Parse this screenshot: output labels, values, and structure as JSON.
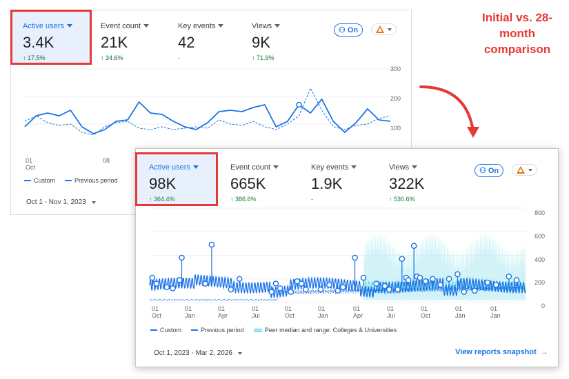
{
  "annotation": {
    "line1": "Initial vs. 28-",
    "line2": "month",
    "line3": "comparison",
    "color": "#e53935"
  },
  "card1": {
    "metrics": [
      {
        "label": "Active users",
        "value": "3.4K",
        "change": "↑ 17.5%"
      },
      {
        "label": "Event count",
        "value": "21K",
        "change": "↑ 34.6%"
      },
      {
        "label": "Key events",
        "value": "42",
        "change": "-"
      },
      {
        "label": "Views",
        "value": "9K",
        "change": "↑ 71.9%"
      }
    ],
    "insights_label": "On",
    "y_ticks": [
      "300",
      "200",
      "100"
    ],
    "x_ticks": [
      {
        "day": "01",
        "month": "Oct"
      },
      {
        "day": "08",
        "month": ""
      }
    ],
    "legend": {
      "custom": "Custom",
      "previous": "Previous period"
    },
    "date_range": "Oct 1 - Nov 1, 2023"
  },
  "card2": {
    "metrics": [
      {
        "label": "Active users",
        "value": "98K",
        "change": "↑ 364.4%"
      },
      {
        "label": "Event count",
        "value": "665K",
        "change": "↑ 386.6%"
      },
      {
        "label": "Key events",
        "value": "1.9K",
        "change": "-"
      },
      {
        "label": "Views",
        "value": "322K",
        "change": "↑ 530.6%"
      }
    ],
    "insights_label": "On",
    "y_ticks": [
      "800",
      "600",
      "400",
      "200",
      "0"
    ],
    "x_ticks": [
      {
        "day": "01",
        "month": "Oct"
      },
      {
        "day": "01",
        "month": "Jan"
      },
      {
        "day": "01",
        "month": "Apr"
      },
      {
        "day": "01",
        "month": "Jul"
      },
      {
        "day": "01",
        "month": "Oct"
      },
      {
        "day": "01",
        "month": "Jan"
      },
      {
        "day": "01",
        "month": "Apr"
      },
      {
        "day": "01",
        "month": "Jul"
      },
      {
        "day": "01",
        "month": "Oct"
      },
      {
        "day": "01",
        "month": "Jan"
      }
    ],
    "legend": {
      "custom": "Custom",
      "previous": "Previous period",
      "peer": "Peer median and range: Colleges & Universities"
    },
    "date_range": "Oct 1, 2023 - Mar 2, 2026",
    "snapshot_label": "View reports snapshot"
  },
  "chart_data": [
    {
      "type": "line",
      "ylim": [
        0,
        300
      ],
      "series": [
        {
          "name": "Custom",
          "values": [
            90,
            130,
            140,
            130,
            150,
            90,
            65,
            80,
            110,
            115,
            180,
            140,
            135,
            110,
            90,
            80,
            105,
            145,
            150,
            145,
            160,
            170,
            90,
            110,
            170,
            140,
            190,
            110,
            70,
            105,
            155,
            115,
            110
          ]
        },
        {
          "name": "Previous period",
          "values": [
            110,
            130,
            105,
            95,
            100,
            70,
            60,
            90,
            105,
            110,
            85,
            80,
            90,
            80,
            85,
            90,
            85,
            115,
            100,
            95,
            110,
            90,
            80,
            100,
            130,
            230,
            150,
            90,
            80,
            95,
            100,
            120,
            130
          ]
        }
      ]
    },
    {
      "type": "line",
      "ylim": [
        0,
        800
      ],
      "series": [
        {
          "name": "Custom",
          "values": []
        },
        {
          "name": "Previous period",
          "values": []
        }
      ]
    }
  ]
}
